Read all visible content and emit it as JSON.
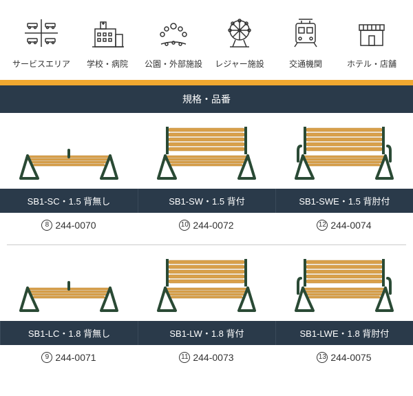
{
  "categories": [
    {
      "label": "サービスエリア",
      "icon": "cars"
    },
    {
      "label": "学校・病院",
      "icon": "building"
    },
    {
      "label": "公園・外部施設",
      "icon": "park"
    },
    {
      "label": "レジャー施設",
      "icon": "ferris"
    },
    {
      "label": "交通機関",
      "icon": "train"
    },
    {
      "label": "ホテル・店舗",
      "icon": "shop"
    }
  ],
  "section_header": "規格・品番",
  "products": [
    {
      "label": "SB1-SC・1.5 背無し",
      "circ": "8",
      "code": "244-0070",
      "back": false,
      "arms": false
    },
    {
      "label": "SB1-SW・1.5 背付",
      "circ": "10",
      "code": "244-0072",
      "back": true,
      "arms": false
    },
    {
      "label": "SB1-SWE・1.5 背肘付",
      "circ": "12",
      "code": "244-0074",
      "back": true,
      "arms": true
    },
    {
      "label": "SB1-LC・1.8 背無し",
      "circ": "9",
      "code": "244-0071",
      "back": false,
      "arms": false
    },
    {
      "label": "SB1-LW・1.8 背付",
      "circ": "11",
      "code": "244-0073",
      "back": true,
      "arms": false
    },
    {
      "label": "SB1-LWE・1.8 背肘付",
      "circ": "13",
      "code": "244-0075",
      "back": true,
      "arms": true
    }
  ],
  "colors": {
    "accent": "#f0a830",
    "header_bg": "#2a3a4a",
    "wood": "#d9a04a",
    "wood_dark": "#b8873a",
    "frame": "#2a4a35"
  }
}
